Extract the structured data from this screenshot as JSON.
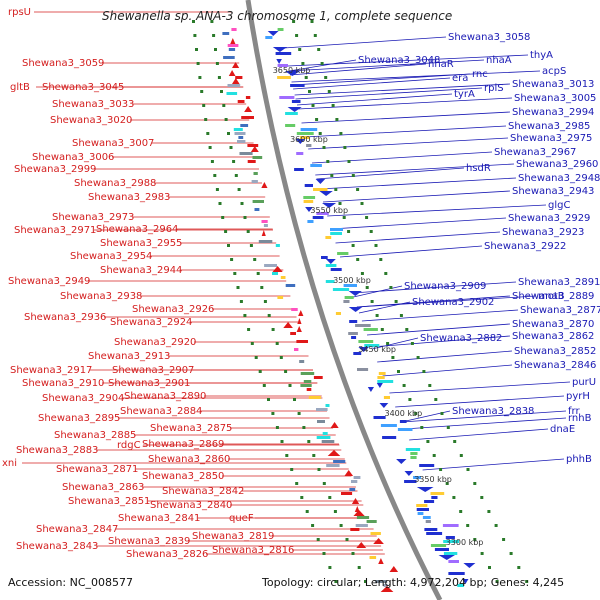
{
  "title": "Shewanella sp. ANA-3 chromosome 1, complete sequence",
  "accession": "Accession: NC_008577",
  "topology": "Topology: circular; Length: 4,972,204 bp; Genes: 4,245",
  "colors": {
    "left_labels": "#d42020",
    "right_labels": "#1a1ab4",
    "ring": "#888888",
    "tick": "#2a7a2a"
  },
  "scale_labels": [
    "3650 kbp",
    "3600 kbp",
    "3550 kbp",
    "3500 kbp",
    "3450 kbp",
    "3400 kbp",
    "3350 kbp",
    "3300 kbp"
  ],
  "left_labels": [
    "rpsU",
    "Shewana3_3059",
    "gltB",
    "Shewana3_3045",
    "Shewana3_3033",
    "Shewana3_3020",
    "Shewana3_3007",
    "Shewana3_3006",
    "Shewana3_2999",
    "Shewana3_2988",
    "Shewana3_2983",
    "Shewana3_2973",
    "Shewana3_2971",
    "Shewana3_2964",
    "Shewana3_2955",
    "Shewana3_2954",
    "Shewana3_2944",
    "Shewana3_2949",
    "Shewana3_2938",
    "Shewana3_2926",
    "Shewana3_2936",
    "Shewana3_2924",
    "Shewana3_2920",
    "Shewana3_2913",
    "Shewana3_2917",
    "Shewana3_2907",
    "Shewana3_2910",
    "Shewana3_2901",
    "Shewana3_2904",
    "Shewana3_2890",
    "Shewana3_2895",
    "Shewana3_2884",
    "Shewana3_2885",
    "Shewana3_2875",
    "rdgC",
    "Shewana3_2869",
    "Shewana3_2883",
    "Shewana3_2860",
    "xni",
    "Shewana3_2871",
    "Shewana3_2850",
    "Shewana3_2863",
    "Shewana3_2842",
    "Shewana3_2851",
    "Shewana3_2840",
    "Shewana3_2841",
    "queF",
    "Shewana3_2847",
    "Shewana3_2819",
    "Shewana3_2843",
    "Shewana3_2839",
    "Shewana3_2826",
    "Shewana3_2816"
  ],
  "right_labels": [
    "Shewana3_3058",
    "thyA",
    "Shewana3_3048",
    "nhaR",
    "nhaA",
    "acpS",
    "era",
    "rnc",
    "Shewana3_3013",
    "tyrA",
    "rplS",
    "Shewana3_3005",
    "Shewana3_2994",
    "Shewana3_2985",
    "Shewana3_2975",
    "Shewana3_2967",
    "hsdR",
    "Shewana3_2960",
    "Shewana3_2948",
    "Shewana3_2943",
    "glgC",
    "Shewana3_2929",
    "Shewana3_2923",
    "Shewana3_2922",
    "motB",
    "Shewana3_2909",
    "Shewana3_2891",
    "Shewana3_2902",
    "Shewana3_2889",
    "Shewana3_2877",
    "Shewana3_2870",
    "Shewana3_2882",
    "Shewana3_2862",
    "Shewana3_2852",
    "Shewana3_2846",
    "purU",
    "pyrH",
    "Shewana3_2838",
    "frr",
    "rnhB",
    "dnaE",
    "phhB"
  ]
}
